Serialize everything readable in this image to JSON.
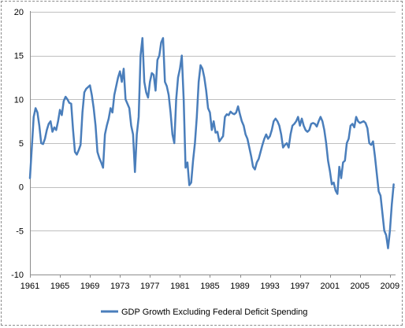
{
  "chart_data": {
    "type": "line",
    "title": "",
    "xlabel": "",
    "ylabel": "",
    "xlim": [
      1961,
      2009.75
    ],
    "ylim": [
      -10,
      20
    ],
    "y_ticks": [
      -10,
      -5,
      0,
      5,
      10,
      15,
      20
    ],
    "y_tick_labels": [
      "-10",
      "-5",
      "0",
      "5",
      "10",
      "15",
      "20"
    ],
    "x_ticks": [
      1961,
      1965,
      1969,
      1973,
      1977,
      1981,
      1985,
      1989,
      1993,
      1997,
      2001,
      2005,
      2009
    ],
    "x_tick_labels": [
      "1961",
      "1965",
      "1969",
      "1973",
      "1977",
      "1981",
      "1985",
      "1989",
      "1993",
      "1997",
      "2001",
      "2005",
      "2009"
    ],
    "grid": "horizontal",
    "legend_position": "bottom",
    "colors": {
      "series": "#4a7ebb",
      "grid": "#bfbfbf",
      "axis": "#8c8c8c"
    },
    "series": [
      {
        "name": "GDP Growth Excluding Federal Deficit Spending",
        "points": [
          [
            1961.0,
            1.0
          ],
          [
            1961.25,
            4.5
          ],
          [
            1961.5,
            8.0
          ],
          [
            1961.75,
            9.0
          ],
          [
            1962.0,
            8.5
          ],
          [
            1962.25,
            7.0
          ],
          [
            1962.5,
            5.0
          ],
          [
            1962.75,
            4.9
          ],
          [
            1963.0,
            5.5
          ],
          [
            1963.25,
            6.5
          ],
          [
            1963.5,
            7.2
          ],
          [
            1963.75,
            7.5
          ],
          [
            1964.0,
            6.3
          ],
          [
            1964.25,
            6.8
          ],
          [
            1964.5,
            6.5
          ],
          [
            1964.75,
            7.5
          ],
          [
            1965.0,
            8.8
          ],
          [
            1965.25,
            8.2
          ],
          [
            1965.5,
            9.8
          ],
          [
            1965.75,
            10.3
          ],
          [
            1966.0,
            10.0
          ],
          [
            1966.25,
            9.6
          ],
          [
            1966.5,
            9.5
          ],
          [
            1966.75,
            6.5
          ],
          [
            1967.0,
            4.0
          ],
          [
            1967.25,
            3.7
          ],
          [
            1967.5,
            4.2
          ],
          [
            1967.75,
            4.8
          ],
          [
            1968.0,
            8.5
          ],
          [
            1968.25,
            10.8
          ],
          [
            1968.5,
            11.2
          ],
          [
            1968.75,
            11.4
          ],
          [
            1969.0,
            11.6
          ],
          [
            1969.25,
            10.5
          ],
          [
            1969.5,
            9.0
          ],
          [
            1969.75,
            7.0
          ],
          [
            1970.0,
            4.0
          ],
          [
            1970.25,
            3.3
          ],
          [
            1970.5,
            2.8
          ],
          [
            1970.75,
            2.2
          ],
          [
            1971.0,
            6.0
          ],
          [
            1971.25,
            7.0
          ],
          [
            1971.5,
            7.8
          ],
          [
            1971.75,
            9.0
          ],
          [
            1972.0,
            8.5
          ],
          [
            1972.25,
            10.5
          ],
          [
            1972.5,
            11.5
          ],
          [
            1972.75,
            12.5
          ],
          [
            1973.0,
            13.2
          ],
          [
            1973.25,
            12.0
          ],
          [
            1973.5,
            13.5
          ],
          [
            1973.75,
            10.0
          ],
          [
            1974.0,
            9.5
          ],
          [
            1974.25,
            9.0
          ],
          [
            1974.5,
            7.0
          ],
          [
            1974.75,
            6.0
          ],
          [
            1975.0,
            1.7
          ],
          [
            1975.25,
            6.0
          ],
          [
            1975.5,
            8.0
          ],
          [
            1975.75,
            15.0
          ],
          [
            1976.0,
            17.0
          ],
          [
            1976.25,
            12.0
          ],
          [
            1976.5,
            10.8
          ],
          [
            1976.75,
            10.2
          ],
          [
            1977.0,
            12.0
          ],
          [
            1977.25,
            13.0
          ],
          [
            1977.5,
            12.8
          ],
          [
            1977.75,
            11.0
          ],
          [
            1978.0,
            14.5
          ],
          [
            1978.25,
            15.0
          ],
          [
            1978.5,
            16.5
          ],
          [
            1978.75,
            17.0
          ],
          [
            1979.0,
            12.0
          ],
          [
            1979.25,
            11.5
          ],
          [
            1979.5,
            10.5
          ],
          [
            1979.75,
            8.5
          ],
          [
            1980.0,
            6.0
          ],
          [
            1980.25,
            5.0
          ],
          [
            1980.5,
            10.0
          ],
          [
            1980.75,
            12.5
          ],
          [
            1981.0,
            13.5
          ],
          [
            1981.25,
            15.0
          ],
          [
            1981.5,
            10.0
          ],
          [
            1981.75,
            2.2
          ],
          [
            1982.0,
            2.8
          ],
          [
            1982.25,
            0.2
          ],
          [
            1982.5,
            0.5
          ],
          [
            1982.75,
            3.0
          ],
          [
            1983.0,
            5.0
          ],
          [
            1983.25,
            8.0
          ],
          [
            1983.5,
            12.0
          ],
          [
            1983.75,
            13.9
          ],
          [
            1984.0,
            13.5
          ],
          [
            1984.25,
            12.5
          ],
          [
            1984.5,
            11.0
          ],
          [
            1984.75,
            9.0
          ],
          [
            1985.0,
            8.5
          ],
          [
            1985.25,
            6.5
          ],
          [
            1985.5,
            7.5
          ],
          [
            1985.75,
            6.2
          ],
          [
            1986.0,
            6.3
          ],
          [
            1986.25,
            5.2
          ],
          [
            1986.5,
            5.5
          ],
          [
            1986.75,
            5.8
          ],
          [
            1987.0,
            8.0
          ],
          [
            1987.25,
            8.3
          ],
          [
            1987.5,
            8.2
          ],
          [
            1987.75,
            8.6
          ],
          [
            1988.0,
            8.4
          ],
          [
            1988.25,
            8.3
          ],
          [
            1988.5,
            8.5
          ],
          [
            1988.75,
            9.2
          ],
          [
            1989.0,
            8.3
          ],
          [
            1989.25,
            7.5
          ],
          [
            1989.5,
            7.0
          ],
          [
            1989.75,
            6.0
          ],
          [
            1990.0,
            5.5
          ],
          [
            1990.25,
            4.5
          ],
          [
            1990.5,
            3.5
          ],
          [
            1990.75,
            2.3
          ],
          [
            1991.0,
            2.0
          ],
          [
            1991.25,
            2.8
          ],
          [
            1991.5,
            3.2
          ],
          [
            1991.75,
            4.0
          ],
          [
            1992.0,
            4.8
          ],
          [
            1992.25,
            5.5
          ],
          [
            1992.5,
            6.0
          ],
          [
            1992.75,
            5.5
          ],
          [
            1993.0,
            5.8
          ],
          [
            1993.25,
            6.5
          ],
          [
            1993.5,
            7.5
          ],
          [
            1993.75,
            7.8
          ],
          [
            1994.0,
            7.5
          ],
          [
            1994.25,
            7.0
          ],
          [
            1994.5,
            6.0
          ],
          [
            1994.75,
            4.5
          ],
          [
            1995.0,
            4.8
          ],
          [
            1995.25,
            5.0
          ],
          [
            1995.5,
            4.5
          ],
          [
            1995.75,
            6.0
          ],
          [
            1996.0,
            7.0
          ],
          [
            1996.25,
            7.2
          ],
          [
            1996.5,
            7.5
          ],
          [
            1996.75,
            8.0
          ],
          [
            1997.0,
            7.0
          ],
          [
            1997.25,
            7.8
          ],
          [
            1997.5,
            7.0
          ],
          [
            1997.75,
            6.5
          ],
          [
            1998.0,
            6.3
          ],
          [
            1998.25,
            6.5
          ],
          [
            1998.5,
            7.2
          ],
          [
            1998.75,
            7.3
          ],
          [
            1999.0,
            7.2
          ],
          [
            1999.25,
            6.9
          ],
          [
            1999.5,
            7.5
          ],
          [
            1999.75,
            8.0
          ],
          [
            2000.0,
            7.5
          ],
          [
            2000.25,
            6.5
          ],
          [
            2000.5,
            5.0
          ],
          [
            2000.75,
            3.0
          ],
          [
            2001.0,
            1.8
          ],
          [
            2001.25,
            0.3
          ],
          [
            2001.5,
            0.5
          ],
          [
            2001.75,
            -0.4
          ],
          [
            2002.0,
            -0.8
          ],
          [
            2002.25,
            2.3
          ],
          [
            2002.5,
            1.0
          ],
          [
            2002.75,
            2.8
          ],
          [
            2003.0,
            3.0
          ],
          [
            2003.25,
            5.0
          ],
          [
            2003.5,
            5.5
          ],
          [
            2003.75,
            7.0
          ],
          [
            2004.0,
            7.2
          ],
          [
            2004.25,
            6.8
          ],
          [
            2004.5,
            8.0
          ],
          [
            2004.75,
            7.5
          ],
          [
            2005.0,
            7.3
          ],
          [
            2005.25,
            7.4
          ],
          [
            2005.5,
            7.5
          ],
          [
            2005.75,
            7.3
          ],
          [
            2006.0,
            6.7
          ],
          [
            2006.25,
            5.0
          ],
          [
            2006.5,
            4.8
          ],
          [
            2006.75,
            5.2
          ],
          [
            2007.0,
            3.5
          ],
          [
            2007.25,
            1.5
          ],
          [
            2007.5,
            -0.5
          ],
          [
            2007.75,
            -1.0
          ],
          [
            2008.0,
            -3.0
          ],
          [
            2008.25,
            -5.0
          ],
          [
            2008.5,
            -5.5
          ],
          [
            2008.75,
            -7.0
          ],
          [
            2009.0,
            -5.0
          ],
          [
            2009.25,
            -2.0
          ],
          [
            2009.5,
            0.3
          ]
        ]
      }
    ]
  }
}
